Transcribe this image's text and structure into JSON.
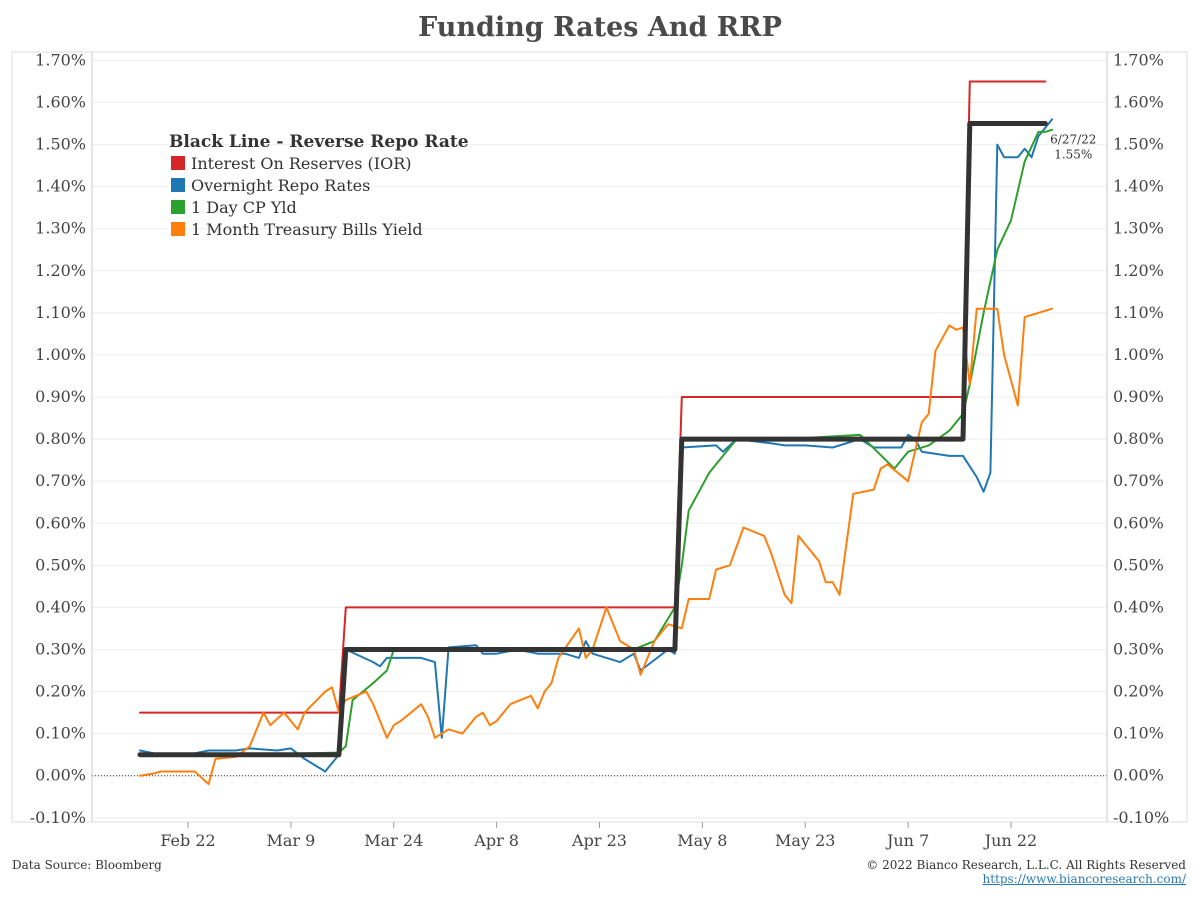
{
  "chart_data": {
    "type": "line",
    "title": "Funding Rates And RRP",
    "xlabel": "",
    "ylabel": "",
    "x_ticks": [
      "Feb 22",
      "Mar 9",
      "Mar 24",
      "Apr 8",
      "Apr 23",
      "May 8",
      "May 23",
      "Jun 7",
      "Jun 22"
    ],
    "x_range": [
      "2022-02-08",
      "2022-07-06"
    ],
    "y_ticks": [
      "1.70%",
      "1.60%",
      "1.50%",
      "1.40%",
      "1.30%",
      "1.20%",
      "1.10%",
      "1.00%",
      "0.90%",
      "0.80%",
      "0.70%",
      "0.60%",
      "0.50%",
      "0.40%",
      "0.30%",
      "0.20%",
      "0.10%",
      "0.00%",
      "-0.10%"
    ],
    "ylim": [
      -0.11,
      1.72
    ],
    "grid": true,
    "legend_title": "Black Line - Reverse Repo Rate",
    "legend_position": "top-left",
    "series": [
      {
        "name": "Reverse Repo Rate",
        "color": "#333333",
        "points": [
          [
            "2022-02-15",
            0.05
          ],
          [
            "2022-03-16",
            0.05
          ],
          [
            "2022-03-17",
            0.3
          ],
          [
            "2022-05-04",
            0.3
          ],
          [
            "2022-05-05",
            0.8
          ],
          [
            "2022-06-15",
            0.8
          ],
          [
            "2022-06-16",
            1.55
          ],
          [
            "2022-06-27",
            1.55
          ]
        ]
      },
      {
        "name": "Interest On Reserves (IOR)",
        "color": "#d62728",
        "points": [
          [
            "2022-02-15",
            0.15
          ],
          [
            "2022-03-16",
            0.15
          ],
          [
            "2022-03-17",
            0.4
          ],
          [
            "2022-05-04",
            0.4
          ],
          [
            "2022-05-05",
            0.9
          ],
          [
            "2022-06-15",
            0.9
          ],
          [
            "2022-06-16",
            1.65
          ],
          [
            "2022-06-27",
            1.65
          ]
        ]
      },
      {
        "name": "Overnight Repo Rates",
        "color": "#1f77b4",
        "points": [
          [
            "2022-02-15",
            0.06
          ],
          [
            "2022-02-18",
            0.05
          ],
          [
            "2022-02-22",
            0.05
          ],
          [
            "2022-02-25",
            0.06
          ],
          [
            "2022-03-01",
            0.06
          ],
          [
            "2022-03-03",
            0.065
          ],
          [
            "2022-03-07",
            0.06
          ],
          [
            "2022-03-09",
            0.065
          ],
          [
            "2022-03-11",
            0.04
          ],
          [
            "2022-03-14",
            0.01
          ],
          [
            "2022-03-16",
            0.05
          ],
          [
            "2022-03-17",
            0.3
          ],
          [
            "2022-03-21",
            0.27
          ],
          [
            "2022-03-22",
            0.26
          ],
          [
            "2022-03-23",
            0.28
          ],
          [
            "2022-03-28",
            0.28
          ],
          [
            "2022-03-30",
            0.27
          ],
          [
            "2022-03-31",
            0.09
          ],
          [
            "2022-04-01",
            0.305
          ],
          [
            "2022-04-05",
            0.31
          ],
          [
            "2022-04-06",
            0.29
          ],
          [
            "2022-04-08",
            0.29
          ],
          [
            "2022-04-11",
            0.3
          ],
          [
            "2022-04-14",
            0.29
          ],
          [
            "2022-04-18",
            0.29
          ],
          [
            "2022-04-20",
            0.28
          ],
          [
            "2022-04-21",
            0.32
          ],
          [
            "2022-04-22",
            0.29
          ],
          [
            "2022-04-26",
            0.27
          ],
          [
            "2022-04-28",
            0.29
          ],
          [
            "2022-04-29",
            0.25
          ],
          [
            "2022-05-03",
            0.3
          ],
          [
            "2022-05-04",
            0.29
          ],
          [
            "2022-05-05",
            0.78
          ],
          [
            "2022-05-10",
            0.785
          ],
          [
            "2022-05-11",
            0.77
          ],
          [
            "2022-05-13",
            0.8
          ],
          [
            "2022-05-18",
            0.79
          ],
          [
            "2022-05-20",
            0.785
          ],
          [
            "2022-05-23",
            0.785
          ],
          [
            "2022-05-27",
            0.78
          ],
          [
            "2022-05-31",
            0.8
          ],
          [
            "2022-06-02",
            0.78
          ],
          [
            "2022-06-06",
            0.78
          ],
          [
            "2022-06-07",
            0.81
          ],
          [
            "2022-06-08",
            0.8
          ],
          [
            "2022-06-09",
            0.77
          ],
          [
            "2022-06-13",
            0.76
          ],
          [
            "2022-06-15",
            0.76
          ],
          [
            "2022-06-17",
            0.71
          ],
          [
            "2022-06-18",
            0.675
          ],
          [
            "2022-06-19",
            0.72
          ],
          [
            "2022-06-20",
            1.5
          ],
          [
            "2022-06-21",
            1.47
          ],
          [
            "2022-06-22",
            1.47
          ],
          [
            "2022-06-23",
            1.47
          ],
          [
            "2022-06-24",
            1.49
          ],
          [
            "2022-06-25",
            1.47
          ],
          [
            "2022-06-26",
            1.52
          ],
          [
            "2022-06-27",
            1.54
          ],
          [
            "2022-06-28",
            1.56
          ]
        ]
      },
      {
        "name": "1 Day CP Yld",
        "color": "#2ca02c",
        "points": [
          [
            "2022-02-15",
            0.05
          ],
          [
            "2022-03-01",
            0.05
          ],
          [
            "2022-03-16",
            0.055
          ],
          [
            "2022-03-17",
            0.07
          ],
          [
            "2022-03-18",
            0.18
          ],
          [
            "2022-03-21",
            0.22
          ],
          [
            "2022-03-23",
            0.25
          ],
          [
            "2022-03-24",
            0.3
          ],
          [
            "2022-04-10",
            0.3
          ],
          [
            "2022-04-20",
            0.3
          ],
          [
            "2022-04-28",
            0.3
          ],
          [
            "2022-05-01",
            0.32
          ],
          [
            "2022-05-04",
            0.4
          ],
          [
            "2022-05-05",
            0.5
          ],
          [
            "2022-05-06",
            0.63
          ],
          [
            "2022-05-09",
            0.72
          ],
          [
            "2022-05-11",
            0.76
          ],
          [
            "2022-05-13",
            0.8
          ],
          [
            "2022-05-20",
            0.8
          ],
          [
            "2022-05-31",
            0.81
          ],
          [
            "2022-06-05",
            0.73
          ],
          [
            "2022-06-07",
            0.77
          ],
          [
            "2022-06-10",
            0.785
          ],
          [
            "2022-06-13",
            0.82
          ],
          [
            "2022-06-15",
            0.86
          ],
          [
            "2022-06-16",
            0.93
          ],
          [
            "2022-06-18",
            1.1
          ],
          [
            "2022-06-20",
            1.25
          ],
          [
            "2022-06-22",
            1.32
          ],
          [
            "2022-06-24",
            1.46
          ],
          [
            "2022-06-26",
            1.53
          ],
          [
            "2022-06-27",
            1.53
          ],
          [
            "2022-06-28",
            1.535
          ]
        ]
      },
      {
        "name": "1 Month Treasury Bills Yield",
        "color": "#ff7f0e",
        "points": [
          [
            "2022-02-15",
            0.0
          ],
          [
            "2022-02-17",
            0.005
          ],
          [
            "2022-02-18",
            0.01
          ],
          [
            "2022-02-23",
            0.01
          ],
          [
            "2022-02-24",
            -0.005
          ],
          [
            "2022-02-25",
            -0.02
          ],
          [
            "2022-02-26",
            0.04
          ],
          [
            "2022-03-01",
            0.045
          ],
          [
            "2022-03-03",
            0.07
          ],
          [
            "2022-03-05",
            0.15
          ],
          [
            "2022-03-06",
            0.12
          ],
          [
            "2022-03-08",
            0.15
          ],
          [
            "2022-03-09",
            0.13
          ],
          [
            "2022-03-10",
            0.11
          ],
          [
            "2022-03-11",
            0.15
          ],
          [
            "2022-03-14",
            0.2
          ],
          [
            "2022-03-15",
            0.21
          ],
          [
            "2022-03-16",
            0.15
          ],
          [
            "2022-03-17",
            0.18
          ],
          [
            "2022-03-20",
            0.2
          ],
          [
            "2022-03-21",
            0.17
          ],
          [
            "2022-03-23",
            0.09
          ],
          [
            "2022-03-24",
            0.12
          ],
          [
            "2022-03-25",
            0.13
          ],
          [
            "2022-03-28",
            0.17
          ],
          [
            "2022-03-29",
            0.14
          ],
          [
            "2022-03-30",
            0.09
          ],
          [
            "2022-04-01",
            0.11
          ],
          [
            "2022-04-03",
            0.1
          ],
          [
            "2022-04-05",
            0.14
          ],
          [
            "2022-04-06",
            0.15
          ],
          [
            "2022-04-07",
            0.12
          ],
          [
            "2022-04-08",
            0.13
          ],
          [
            "2022-04-10",
            0.17
          ],
          [
            "2022-04-13",
            0.19
          ],
          [
            "2022-04-14",
            0.16
          ],
          [
            "2022-04-15",
            0.2
          ],
          [
            "2022-04-16",
            0.22
          ],
          [
            "2022-04-17",
            0.28
          ],
          [
            "2022-04-20",
            0.35
          ],
          [
            "2022-04-21",
            0.28
          ],
          [
            "2022-04-22",
            0.3
          ],
          [
            "2022-04-24",
            0.4
          ],
          [
            "2022-04-26",
            0.32
          ],
          [
            "2022-04-28",
            0.3
          ],
          [
            "2022-04-29",
            0.24
          ],
          [
            "2022-05-01",
            0.32
          ],
          [
            "2022-05-03",
            0.36
          ],
          [
            "2022-05-05",
            0.35
          ],
          [
            "2022-05-06",
            0.42
          ],
          [
            "2022-05-09",
            0.42
          ],
          [
            "2022-05-10",
            0.49
          ],
          [
            "2022-05-12",
            0.5
          ],
          [
            "2022-05-14",
            0.59
          ],
          [
            "2022-05-17",
            0.57
          ],
          [
            "2022-05-18",
            0.53
          ],
          [
            "2022-05-20",
            0.43
          ],
          [
            "2022-05-21",
            0.41
          ],
          [
            "2022-05-22",
            0.57
          ],
          [
            "2022-05-25",
            0.51
          ],
          [
            "2022-05-26",
            0.46
          ],
          [
            "2022-05-27",
            0.46
          ],
          [
            "2022-05-28",
            0.43
          ],
          [
            "2022-05-30",
            0.67
          ],
          [
            "2022-06-02",
            0.68
          ],
          [
            "2022-06-03",
            0.73
          ],
          [
            "2022-06-04",
            0.74
          ],
          [
            "2022-06-07",
            0.7
          ],
          [
            "2022-06-09",
            0.84
          ],
          [
            "2022-06-10",
            0.86
          ],
          [
            "2022-06-11",
            1.01
          ],
          [
            "2022-06-13",
            1.07
          ],
          [
            "2022-06-14",
            1.06
          ],
          [
            "2022-06-15",
            1.065
          ],
          [
            "2022-06-16",
            0.93
          ],
          [
            "2022-06-17",
            1.11
          ],
          [
            "2022-06-20",
            1.11
          ],
          [
            "2022-06-21",
            1.0
          ],
          [
            "2022-06-23",
            0.88
          ],
          [
            "2022-06-24",
            1.09
          ],
          [
            "2022-06-28",
            1.11
          ]
        ]
      }
    ],
    "annotation": {
      "label": "6/27/22",
      "value": "1.55%"
    }
  },
  "footer": {
    "source": "Data Source: Bloomberg",
    "copyright": "© 2022 Bianco Research, L.L.C. All Rights Reserved",
    "url": "https://www.biancoresearch.com/"
  }
}
